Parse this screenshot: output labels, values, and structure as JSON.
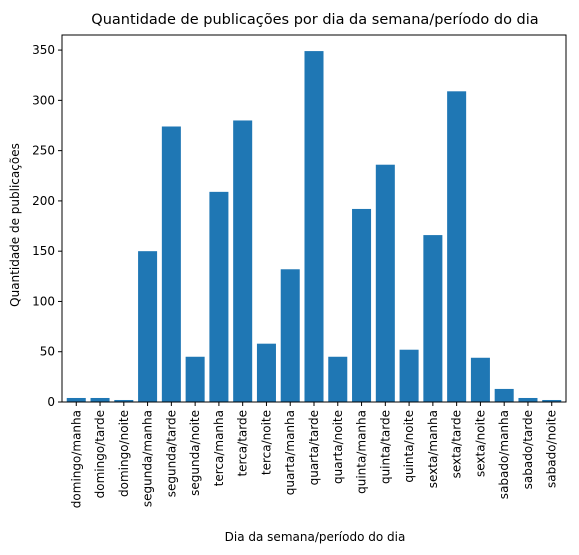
{
  "chart_data": {
    "type": "bar",
    "title": "Quantidade de publicações por dia da semana/período do dia",
    "xlabel": "Dia da semana/período do dia",
    "ylabel": "Quantidade de publicações",
    "ylim": [
      0,
      365
    ],
    "yticks": [
      0,
      50,
      100,
      150,
      200,
      250,
      300,
      350
    ],
    "bar_color": "#1f77b4",
    "grid": false,
    "categories": [
      "domingo/manha",
      "domingo/tarde",
      "domingo/noite",
      "segunda/manha",
      "segunda/tarde",
      "segunda/noite",
      "terca/manha",
      "terca/tarde",
      "terca/noite",
      "quarta/manha",
      "quarta/tarde",
      "quarta/noite",
      "quinta/manha",
      "quinta/tarde",
      "quinta/noite",
      "sexta/manha",
      "sexta/tarde",
      "sexta/noite",
      "sabado/manha",
      "sabado/tarde",
      "sabado/noite"
    ],
    "values": [
      4,
      4,
      2,
      150,
      274,
      45,
      209,
      280,
      58,
      132,
      349,
      45,
      192,
      236,
      52,
      166,
      309,
      44,
      13,
      4,
      2
    ]
  }
}
